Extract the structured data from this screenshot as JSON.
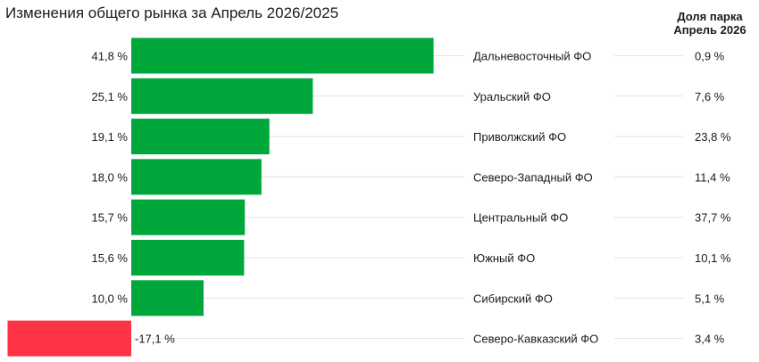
{
  "chart_data": {
    "type": "bar",
    "title": "Изменения общего рынка за Апрель 2026/2025",
    "share_header": [
      "Доля парка",
      "Апрель 2026"
    ],
    "colors": {
      "positive": "#00a83b",
      "negative": "#ff3346",
      "gridline": "#e3e3e3"
    },
    "rows": [
      {
        "value": 41.8,
        "value_label": "41,8 %",
        "category": "Дальневосточный ФО",
        "share": "0,9 %"
      },
      {
        "value": 25.1,
        "value_label": "25,1 %",
        "category": "Уральский ФО",
        "share": "7,6 %"
      },
      {
        "value": 19.1,
        "value_label": "19,1 %",
        "category": "Приволжский ФО",
        "share": "23,8 %"
      },
      {
        "value": 18.0,
        "value_label": "18,0 %",
        "category": "Северо-Западный ФО",
        "share": "11,4 %"
      },
      {
        "value": 15.7,
        "value_label": "15,7 %",
        "category": "Центральный ФО",
        "share": "37,7 %"
      },
      {
        "value": 15.6,
        "value_label": "15,6 %",
        "category": "Южный ФО",
        "share": "10,1 %"
      },
      {
        "value": 10.0,
        "value_label": "10,0 %",
        "category": "Сибирский ФО",
        "share": "5,1 %"
      },
      {
        "value": -17.1,
        "value_label": "-17,1 %",
        "category": "Северо-Кавказский ФО",
        "share": "3,4 %"
      }
    ]
  }
}
